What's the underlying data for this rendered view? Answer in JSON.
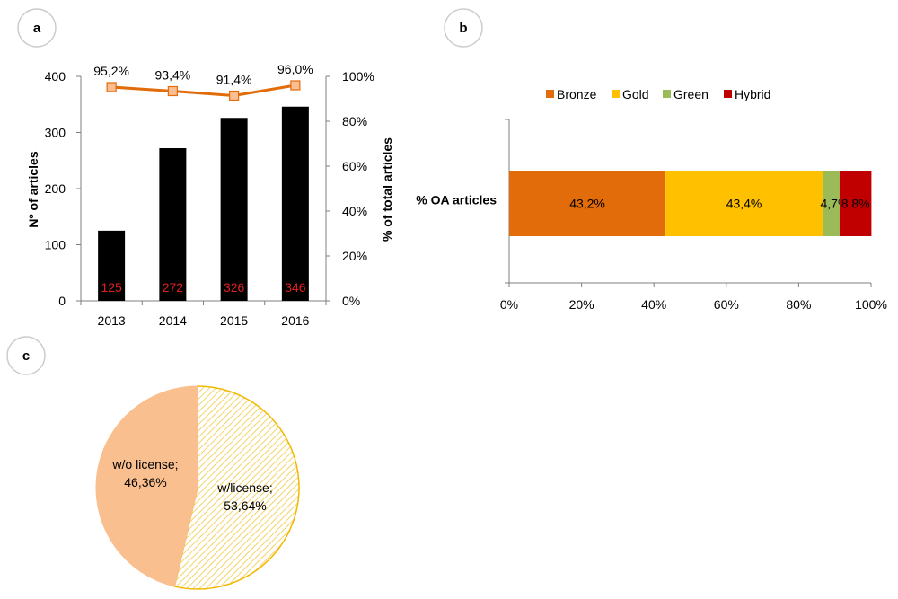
{
  "panels": [
    "a",
    "b",
    "c"
  ],
  "colors": {
    "bar": "#000000",
    "bar_label": "#e0201b",
    "line": "#e36c0a",
    "marker_fill": "#fbbe93",
    "bronze": "#e36c0a",
    "gold": "#ffc000",
    "green": "#9bbb59",
    "hybrid": "#c00000",
    "pie_wo": "#f9bf8f",
    "pie_w_border": "#f2b800",
    "pie_w_hatch": "#f3d468",
    "panel_circle": "#cccccc",
    "axis": "#7f7f7f"
  },
  "chart_data": [
    {
      "type": "bar",
      "panel": "a",
      "categories": [
        "2013",
        "2014",
        "2015",
        "2016"
      ],
      "values": [
        125,
        272,
        326,
        346
      ],
      "bar_labels": [
        "125",
        "272",
        "326",
        "346"
      ],
      "ylabel": "Nº of articles",
      "ylim": [
        0,
        400
      ],
      "yticks": [
        "0",
        "100",
        "200",
        "300",
        "400"
      ],
      "y2label": "% of total articles",
      "y2lim": [
        0,
        100
      ],
      "y2ticks": [
        "0%",
        "20%",
        "40%",
        "60%",
        "80%",
        "100%"
      ],
      "line_series": {
        "values": [
          95.2,
          93.4,
          91.4,
          96.0
        ],
        "labels": [
          "95,2%",
          "93,4%",
          "91,4%",
          "96,0%"
        ]
      }
    },
    {
      "type": "bar",
      "orientation": "horizontal",
      "stacked": true,
      "panel": "b",
      "categories": [
        "% OA articles"
      ],
      "series": [
        {
          "name": "Bronze",
          "values": [
            43.2
          ],
          "label": "43,2%"
        },
        {
          "name": "Gold",
          "values": [
            43.4
          ],
          "label": "43,4%"
        },
        {
          "name": "Green",
          "values": [
            4.7
          ],
          "label": "4,7%"
        },
        {
          "name": "Hybrid",
          "values": [
            8.8
          ],
          "label": "8,8%"
        }
      ],
      "xlim": [
        0,
        100
      ],
      "xticks": [
        "0%",
        "20%",
        "40%",
        "60%",
        "80%",
        "100%"
      ],
      "legend": "top"
    },
    {
      "type": "pie",
      "panel": "c",
      "slices": [
        {
          "label_line1": "w/license;",
          "label_line2": "53,64%",
          "value": 53.64
        },
        {
          "label_line1": "w/o license;",
          "label_line2": "46,36%",
          "value": 46.36
        }
      ]
    }
  ]
}
